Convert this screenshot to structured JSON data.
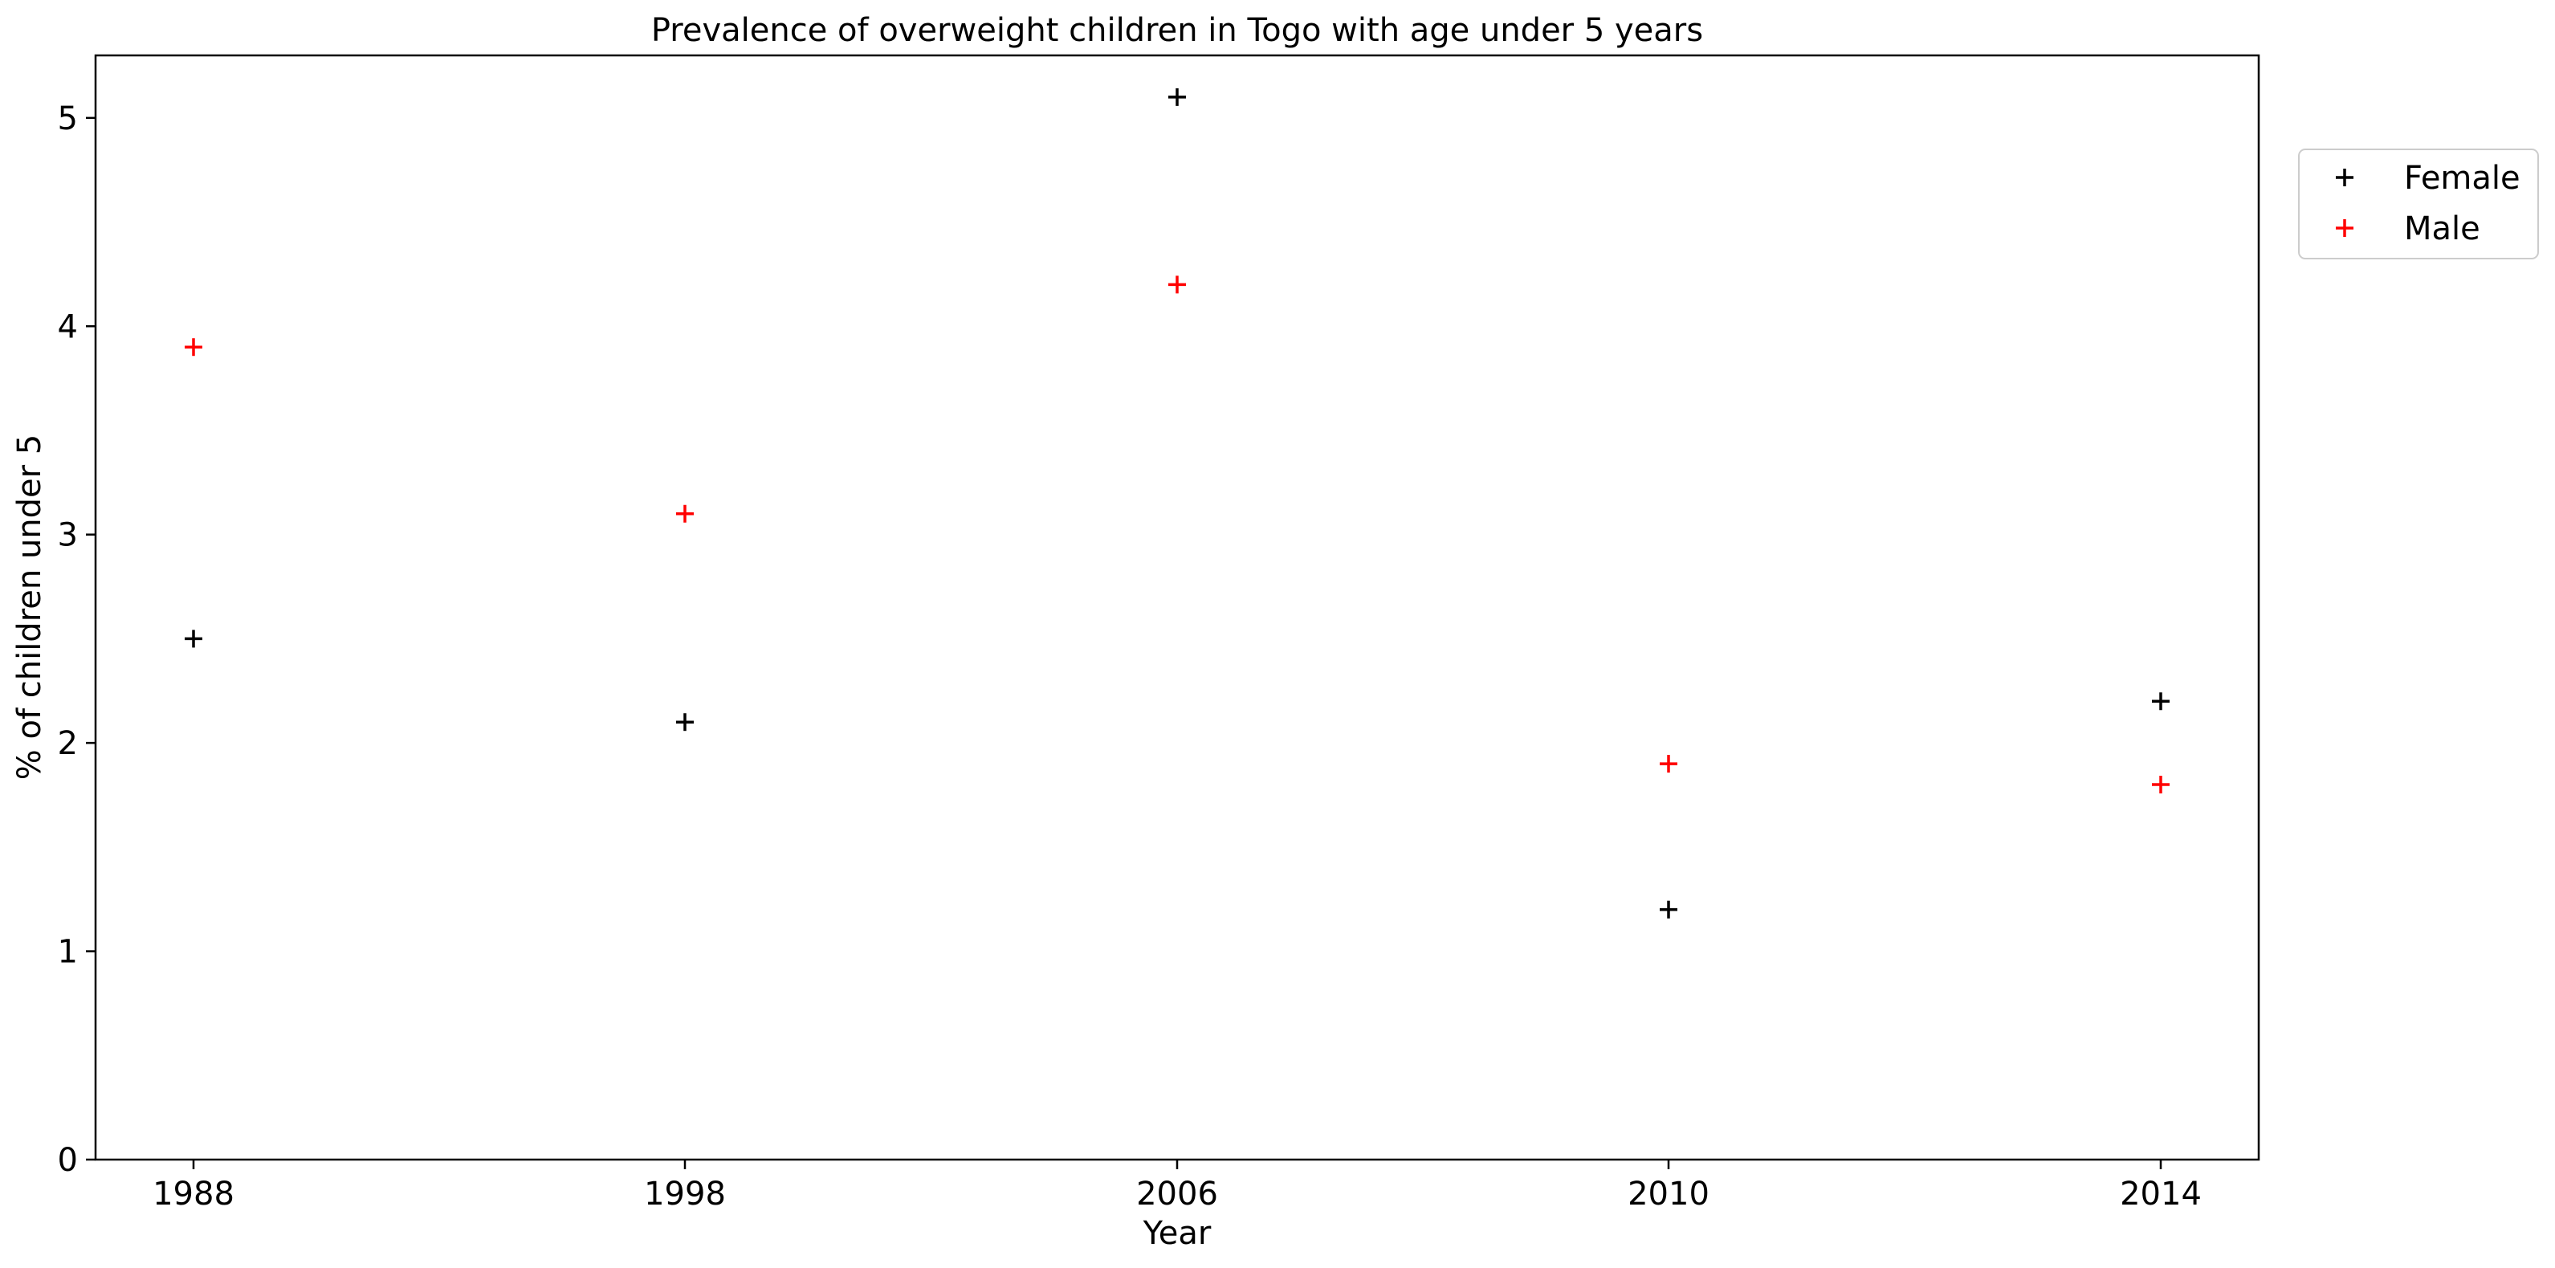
{
  "chart_data": {
    "type": "scatter",
    "title": "Prevalence of overweight children in Togo with age under 5 years",
    "xlabel": "Year",
    "ylabel": "% of children under 5",
    "categories": [
      "1988",
      "1998",
      "2006",
      "2010",
      "2014"
    ],
    "ylim": [
      0,
      5.3
    ],
    "yticks": [
      0,
      1,
      2,
      3,
      4,
      5
    ],
    "grid": false,
    "legend_position": "outside-top-right",
    "series": [
      {
        "name": "Female",
        "color": "#000000",
        "marker": "plus",
        "values": [
          2.5,
          2.1,
          5.1,
          1.2,
          2.2
        ]
      },
      {
        "name": "Male",
        "color": "#ff0000",
        "marker": "plus",
        "values": [
          3.9,
          3.1,
          4.2,
          1.9,
          1.8
        ]
      }
    ]
  }
}
